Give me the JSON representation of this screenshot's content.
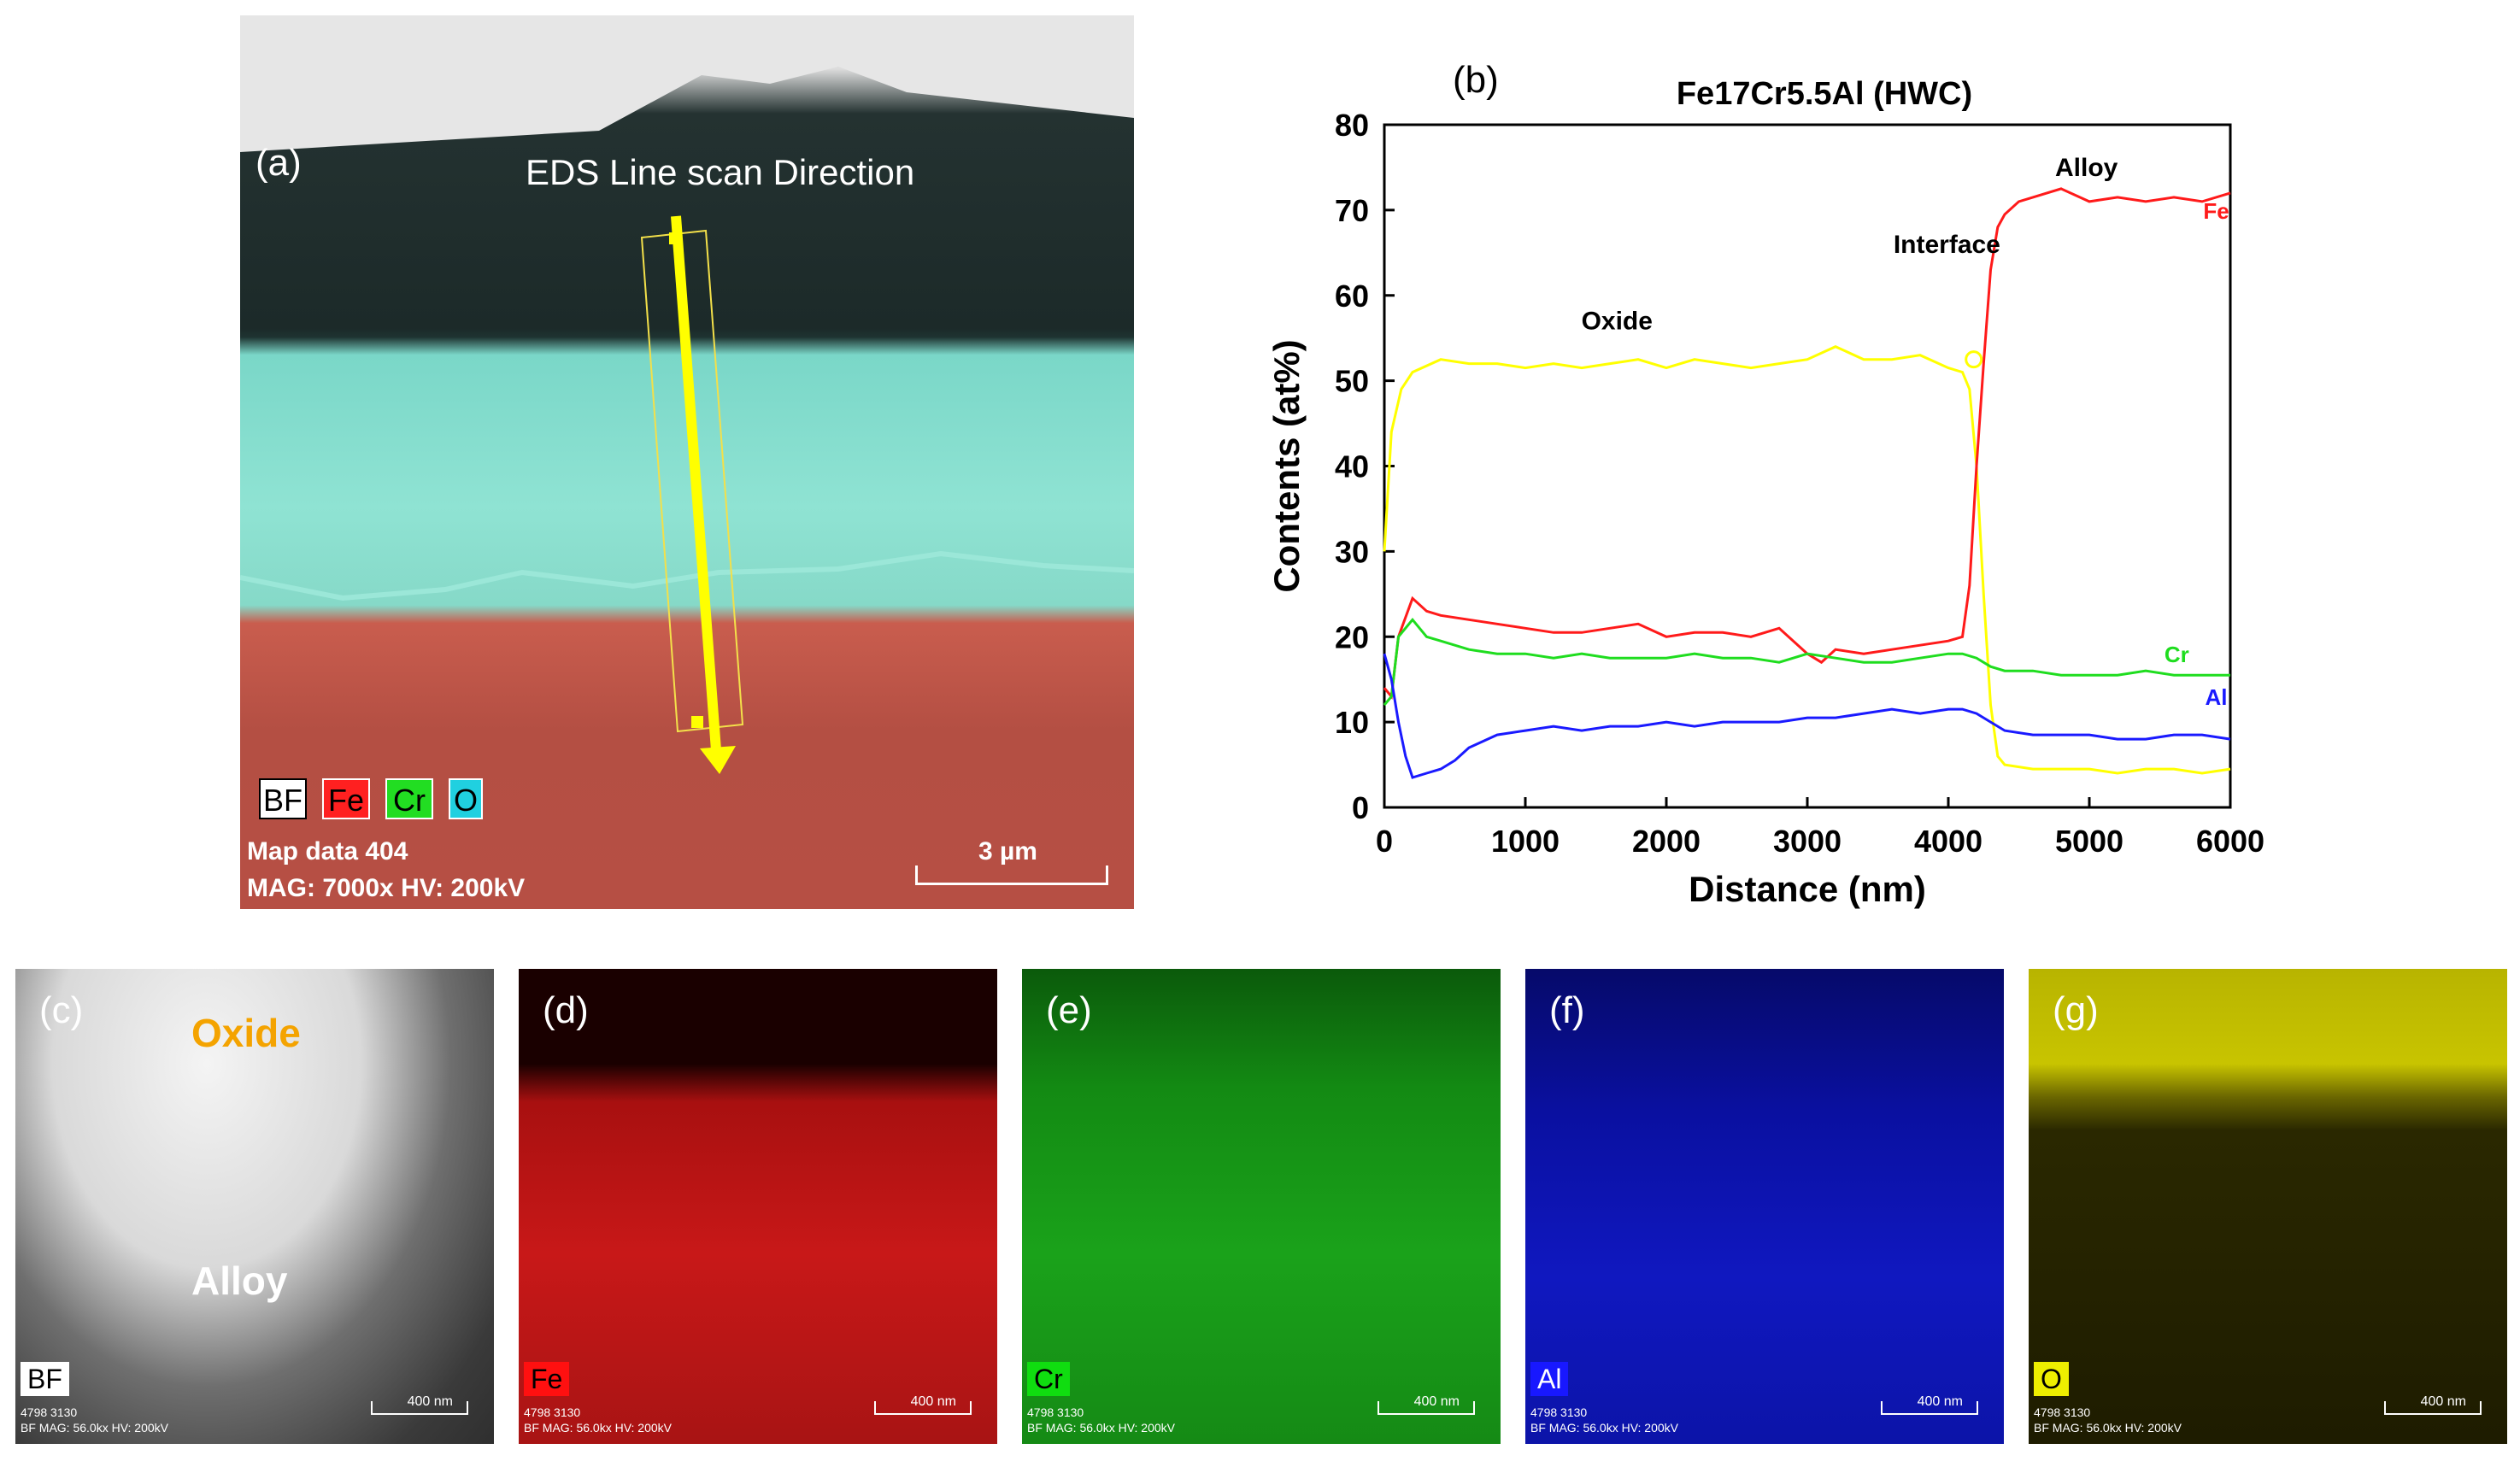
{
  "panel_a": {
    "label": "(a)",
    "scan_label": "EDS Line scan Direction",
    "legend": [
      "BF",
      "Fe",
      "Cr",
      "O"
    ],
    "map_info_line1": "Map data 404",
    "map_info_line2": "MAG: 7000x  HV: 200kV",
    "scale_label": "3 µm"
  },
  "panel_b": {
    "label": "(b)"
  },
  "chart_data": {
    "type": "line",
    "title": "Fe17Cr5.5Al (HWC)",
    "xlabel": "Distance (nm)",
    "ylabel": "Contents (at%)",
    "xlim": [
      0,
      6000
    ],
    "ylim": [
      0,
      80
    ],
    "xticks": [
      0,
      1000,
      2000,
      3000,
      4000,
      5000,
      6000
    ],
    "yticks": [
      0,
      10,
      20,
      30,
      40,
      50,
      60,
      70,
      80
    ],
    "annotations": [
      "Oxide",
      "Interface",
      "Alloy"
    ],
    "series": [
      {
        "name": "O",
        "color": "#ffff00",
        "x": [
          0,
          50,
          120,
          200,
          400,
          600,
          800,
          1000,
          1200,
          1400,
          1600,
          1800,
          2000,
          2200,
          2400,
          2600,
          2800,
          3000,
          3200,
          3400,
          3600,
          3800,
          4000,
          4100,
          4150,
          4200,
          4250,
          4300,
          4350,
          4400,
          4600,
          4800,
          5000,
          5200,
          5400,
          5600,
          5800,
          6000
        ],
        "y": [
          30,
          44,
          49,
          51,
          52.5,
          52,
          52,
          51.5,
          52,
          51.5,
          52,
          52.5,
          51.5,
          52.5,
          52,
          51.5,
          52,
          52.5,
          54,
          52.5,
          52.5,
          53,
          51.5,
          51,
          49,
          40,
          25,
          12,
          6,
          5,
          4.5,
          4.5,
          4.5,
          4,
          4.5,
          4.5,
          4,
          4.5
        ]
      },
      {
        "name": "Fe",
        "color": "#ff1a1a",
        "x": [
          0,
          50,
          100,
          200,
          300,
          400,
          600,
          800,
          1000,
          1200,
          1400,
          1600,
          1800,
          2000,
          2200,
          2400,
          2600,
          2800,
          3000,
          3100,
          3200,
          3400,
          3600,
          3800,
          4000,
          4100,
          4150,
          4200,
          4250,
          4300,
          4350,
          4400,
          4500,
          4600,
          4800,
          5000,
          5200,
          5400,
          5600,
          5800,
          6000
        ],
        "y": [
          14,
          13,
          20,
          24.5,
          23,
          22.5,
          22,
          21.5,
          21,
          20.5,
          20.5,
          21,
          21.5,
          20,
          20.5,
          20.5,
          20,
          21,
          18,
          17,
          18.5,
          18,
          18.5,
          19,
          19.5,
          20,
          26,
          40,
          52,
          63,
          68,
          69.5,
          71,
          71.5,
          72.5,
          71,
          71.5,
          71,
          71.5,
          71,
          72
        ]
      },
      {
        "name": "Cr",
        "color": "#1fdd1f",
        "x": [
          0,
          50,
          100,
          200,
          300,
          400,
          600,
          800,
          1000,
          1200,
          1400,
          1600,
          1800,
          2000,
          2200,
          2400,
          2600,
          2800,
          3000,
          3200,
          3400,
          3600,
          3800,
          4000,
          4100,
          4200,
          4300,
          4400,
          4600,
          4800,
          5000,
          5200,
          5400,
          5600,
          5800,
          6000
        ],
        "y": [
          12,
          13,
          20,
          22,
          20,
          19.5,
          18.5,
          18,
          18,
          17.5,
          18,
          17.5,
          17.5,
          17.5,
          18,
          17.5,
          17.5,
          17,
          18,
          17.5,
          17,
          17,
          17.5,
          18,
          18,
          17.5,
          16.5,
          16,
          16,
          15.5,
          15.5,
          15.5,
          16,
          15.5,
          15.5,
          15.5
        ]
      },
      {
        "name": "Al",
        "color": "#1a1aff",
        "x": [
          0,
          50,
          100,
          150,
          200,
          300,
          400,
          500,
          600,
          800,
          1000,
          1200,
          1400,
          1600,
          1800,
          2000,
          2200,
          2400,
          2600,
          2800,
          3000,
          3200,
          3400,
          3600,
          3800,
          4000,
          4100,
          4200,
          4300,
          4400,
          4600,
          4800,
          5000,
          5200,
          5400,
          5600,
          5800,
          6000
        ],
        "y": [
          18,
          15,
          10,
          6,
          3.5,
          4,
          4.5,
          5.5,
          7,
          8.5,
          9,
          9.5,
          9,
          9.5,
          9.5,
          10,
          9.5,
          10,
          10,
          10,
          10.5,
          10.5,
          11,
          11.5,
          11,
          11.5,
          11.5,
          11,
          10,
          9,
          8.5,
          8.5,
          8.5,
          8,
          8,
          8.5,
          8.5,
          8
        ]
      }
    ]
  },
  "maps": [
    {
      "tag": "(c)",
      "element": "BF",
      "footer_1": "4798 3130",
      "footer_2": "BF  MAG: 56.0kx  HV: 200kV",
      "scale": "400 nm",
      "oxide_label": "Oxide",
      "alloy_label": "Alloy"
    },
    {
      "tag": "(d)",
      "element": "Fe",
      "footer_1": "4798 3130",
      "footer_2": "BF  MAG: 56.0kx  HV: 200kV",
      "scale": "400 nm"
    },
    {
      "tag": "(e)",
      "element": "Cr",
      "footer_1": "4798 3130",
      "footer_2": "BF  MAG: 56.0kx  HV: 200kV",
      "scale": "400 nm"
    },
    {
      "tag": "(f)",
      "element": "Al",
      "footer_1": "4798 3130",
      "footer_2": "BF  MAG: 56.0kx  HV: 200kV",
      "scale": "400 nm"
    },
    {
      "tag": "(g)",
      "element": "O",
      "footer_1": "4798 3130",
      "footer_2": "BF  MAG: 56.0kx  HV: 200kV",
      "scale": "400 nm"
    }
  ]
}
